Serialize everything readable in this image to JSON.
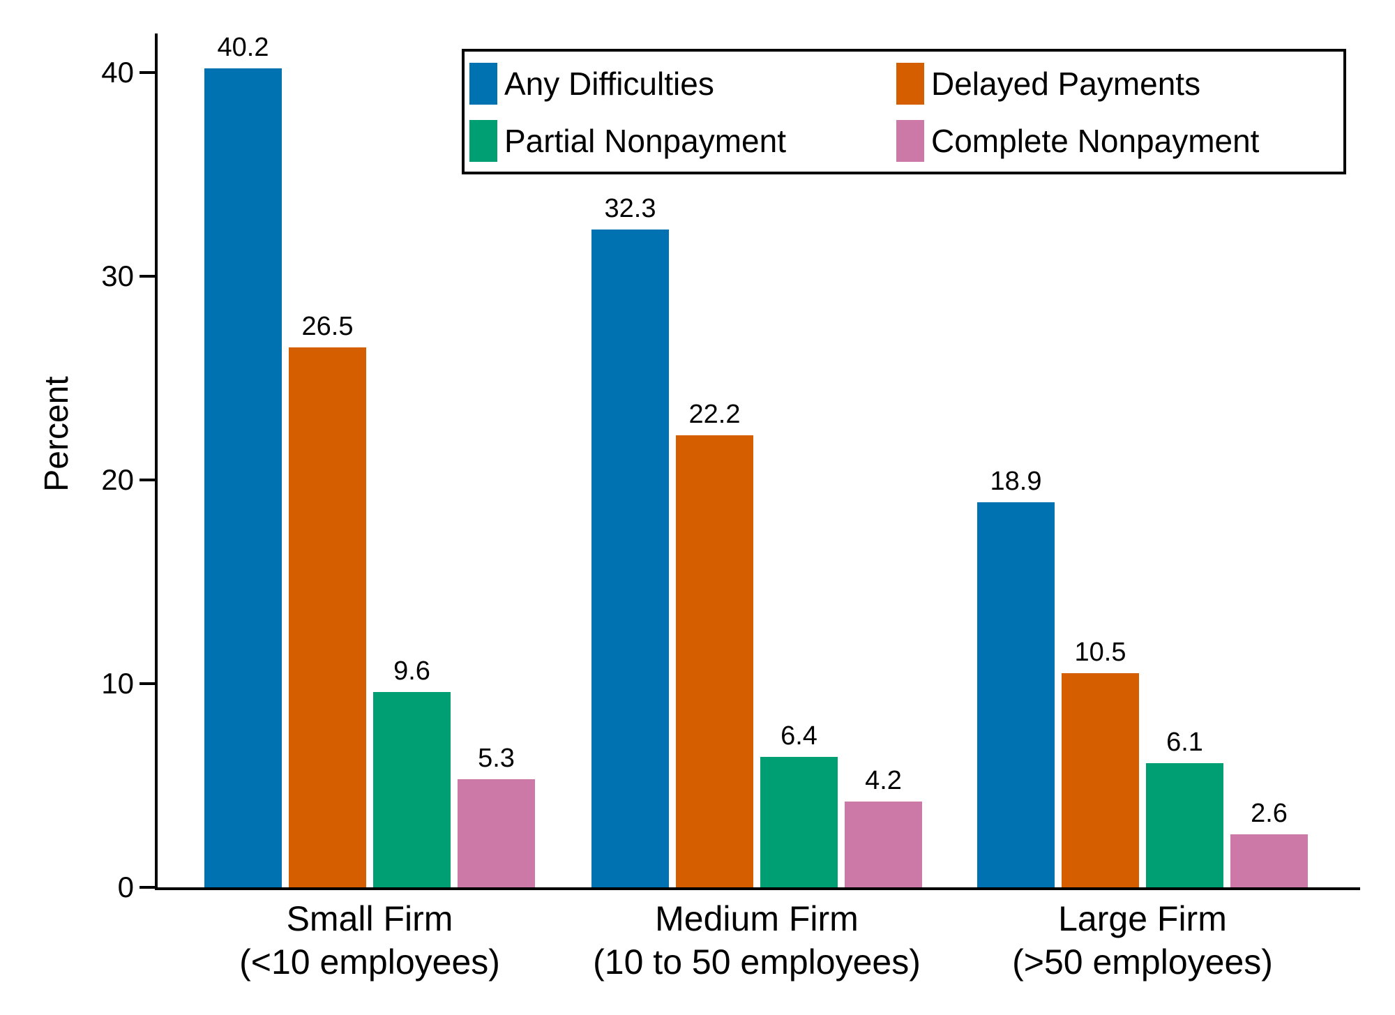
{
  "chart_data": {
    "type": "bar",
    "title": "",
    "xlabel": "",
    "ylabel": "Percent",
    "ylim": [
      0,
      42
    ],
    "yticks": [
      0,
      10,
      20,
      30,
      40
    ],
    "grid": false,
    "bar_value_labels": true,
    "axis_color": "#000000",
    "background": "#ffffff",
    "legend": {
      "position": "top-inside",
      "columns": 2,
      "border": true
    },
    "categories": [
      {
        "label": "Small Firm",
        "sublabel": "(<10 employees)"
      },
      {
        "label": "Medium Firm",
        "sublabel": "(10 to 50 employees)"
      },
      {
        "label": "Large Firm",
        "sublabel": "(>50 employees)"
      }
    ],
    "series": [
      {
        "name": "Any Difficulties",
        "color": "#0072B2",
        "values": [
          40.2,
          32.3,
          18.9
        ]
      },
      {
        "name": "Delayed Payments",
        "color": "#D55E00",
        "values": [
          26.5,
          22.2,
          10.5
        ]
      },
      {
        "name": "Partial Nonpayment",
        "color": "#009E73",
        "values": [
          9.6,
          6.4,
          6.1
        ]
      },
      {
        "name": "Complete Nonpayment",
        "color": "#CC79A7",
        "values": [
          5.3,
          4.2,
          2.6
        ]
      }
    ]
  }
}
